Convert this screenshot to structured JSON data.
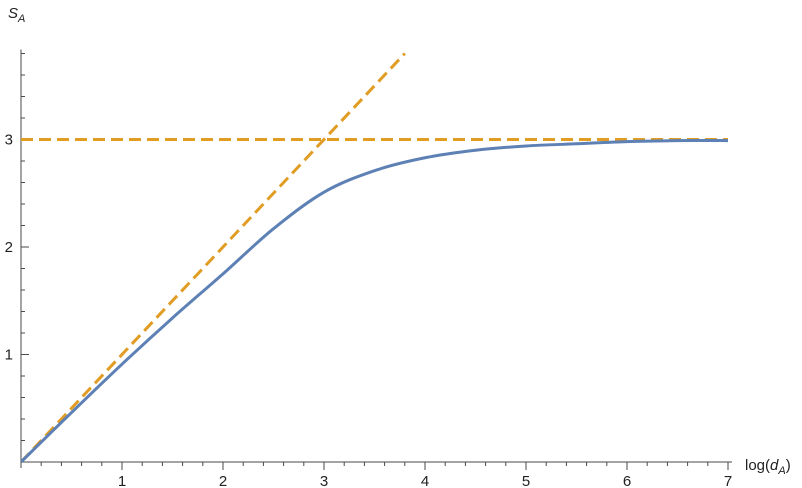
{
  "chart_data": {
    "type": "line",
    "title": "",
    "xlabel": {
      "prefix": "log(",
      "var": "d",
      "sub": "A",
      "suffix": ")"
    },
    "ylabel": {
      "var": "S",
      "sub": "A"
    },
    "xlim": [
      0,
      7
    ],
    "ylim": [
      0,
      3.8
    ],
    "x_ticks": [
      1,
      2,
      3,
      4,
      5,
      6,
      7
    ],
    "x_tick_labels": [
      "1",
      "2",
      "3",
      "4",
      "5",
      "6",
      "7"
    ],
    "x_minor_step": 0.2,
    "y_ticks": [
      1,
      2,
      3
    ],
    "y_tick_labels": [
      "1",
      "2",
      "3"
    ],
    "y_minor_step": 0.2,
    "grid": false,
    "legend": "none",
    "series": [
      {
        "style": "solid",
        "color": "#5e81b5",
        "x": [
          0,
          0.5,
          1,
          1.5,
          2,
          2.5,
          3,
          3.5,
          4,
          4.5,
          5,
          5.5,
          6,
          6.5,
          7
        ],
        "y": [
          0,
          0.46,
          0.91,
          1.34,
          1.75,
          2.17,
          2.51,
          2.71,
          2.83,
          2.9,
          2.94,
          2.96,
          2.98,
          2.99,
          2.99
        ]
      },
      {
        "style": "dashed",
        "color": "#e19c24",
        "x": [
          0,
          3.8
        ],
        "y": [
          0,
          3.8
        ]
      },
      {
        "style": "dashed",
        "color": "#e19c24",
        "x": [
          0,
          7
        ],
        "y": [
          3,
          3
        ]
      }
    ]
  }
}
